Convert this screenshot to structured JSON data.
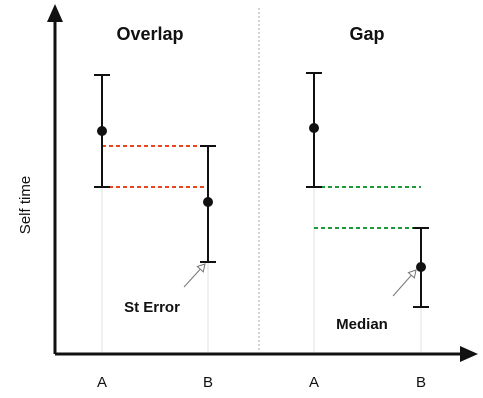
{
  "panels": [
    {
      "title": "Overlap",
      "categories": [
        "A",
        "B"
      ]
    },
    {
      "title": "Gap",
      "categories": [
        "A",
        "B"
      ]
    }
  ],
  "axis": {
    "ylabel": "Self time"
  },
  "annotations": {
    "error_label": "St Error",
    "median_label": "Median"
  },
  "colors": {
    "overlap_line": "#e8461e",
    "gap_line": "#1f9a3a",
    "ink": "#111111",
    "guide": "#dddddd"
  }
}
